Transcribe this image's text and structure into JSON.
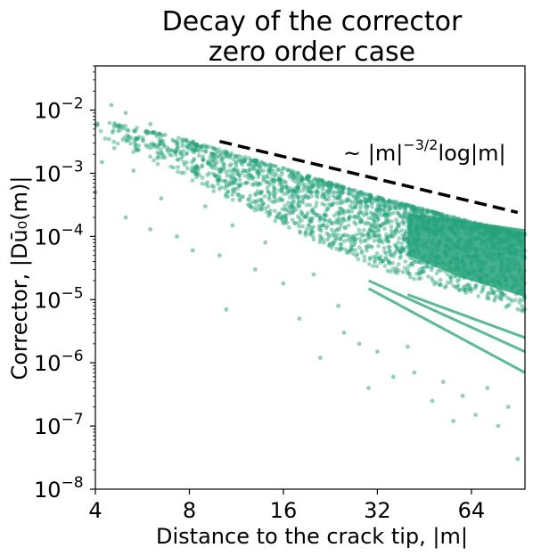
{
  "chart_data": {
    "type": "scatter",
    "title": [
      "Decay of the corrector",
      "zero order case"
    ],
    "xlabel": "Distance to the crack tip, |m|",
    "ylabel": "Corrector, |Dū₀(m)|",
    "x_scale": "log2",
    "y_scale": "log10",
    "xlim": [
      4,
      95
    ],
    "ylim": [
      1e-08,
      0.05
    ],
    "x_ticks": [
      4,
      8,
      16,
      32,
      64
    ],
    "x_tick_labels": [
      "4",
      "8",
      "16",
      "32",
      "64"
    ],
    "y_ticks": [
      1e-08,
      1e-07,
      1e-06,
      1e-05,
      0.0001,
      0.001,
      0.01
    ],
    "y_tick_labels": [
      {
        "base": "10",
        "exp": "−8"
      },
      {
        "base": "10",
        "exp": "−7"
      },
      {
        "base": "10",
        "exp": "−6"
      },
      {
        "base": "10",
        "exp": "−5"
      },
      {
        "base": "10",
        "exp": "−4"
      },
      {
        "base": "10",
        "exp": "−3"
      },
      {
        "base": "10",
        "exp": "−2"
      }
    ],
    "grid": false,
    "marker_color": "#25a27a",
    "reference_line": {
      "style": "dashed",
      "color": "#000000",
      "x": [
        10,
        90
      ],
      "y": [
        0.0032,
        0.00024
      ]
    },
    "annotation": {
      "prefix": "~ |m|",
      "exp": "−3/2",
      "suffix": "log|m|"
    },
    "series": [
      {
        "envelope_upper": [
          [
            4,
            0.0075
          ],
          [
            8,
            0.0033
          ],
          [
            16,
            0.0012
          ],
          [
            32,
            0.00042
          ],
          [
            64,
            0.00017
          ],
          [
            95,
            0.00011
          ]
        ],
        "dense_lower": [
          [
            4,
            0.004
          ],
          [
            8,
            0.0008
          ],
          [
            16,
            0.00015
          ],
          [
            32,
            3e-05
          ],
          [
            64,
            1.2e-05
          ],
          [
            95,
            6e-06
          ]
        ],
        "trend_lines": [
          {
            "x": [
              30,
              95
            ],
            "y": [
              1.5e-05,
              7e-07
            ]
          },
          {
            "x": [
              30,
              95
            ],
            "y": [
              2e-05,
              1.5e-06
            ]
          },
          {
            "x": [
              40,
              95
            ],
            "y": [
              1.2e-05,
              2.5e-06
            ]
          }
        ],
        "outliers": [
          [
            4,
            0.0005
          ],
          [
            4.2,
            0.0015
          ],
          [
            4.6,
            0.0025
          ],
          [
            5,
            0.0002
          ],
          [
            5.3,
            0.0011
          ],
          [
            6,
            0.00013
          ],
          [
            6.5,
            0.0004
          ],
          [
            7.3,
            0.0001
          ],
          [
            8.2,
            6e-05
          ],
          [
            9,
            0.0003
          ],
          [
            10,
            5e-05
          ],
          [
            10.5,
            7e-06
          ],
          [
            11,
            0.00015
          ],
          [
            13,
            3e-05
          ],
          [
            14,
            8e-05
          ],
          [
            16,
            1.8e-05
          ],
          [
            18,
            5e-06
          ],
          [
            20,
            2.5e-05
          ],
          [
            21,
            1.2e-06
          ],
          [
            24,
            8e-06
          ],
          [
            25,
            3e-06
          ],
          [
            28,
            2e-06
          ],
          [
            30,
            4e-07
          ],
          [
            32,
            1.5e-06
          ],
          [
            36,
            6e-07
          ],
          [
            40,
            1.8e-06
          ],
          [
            42,
            7e-07
          ],
          [
            48,
            2.5e-07
          ],
          [
            52,
            5e-07
          ],
          [
            56,
            1.2e-07
          ],
          [
            60,
            3e-07
          ],
          [
            66,
            1.5e-07
          ],
          [
            72,
            4e-07
          ],
          [
            78,
            1e-07
          ],
          [
            84,
            2e-07
          ],
          [
            90,
            3e-08
          ],
          [
            4.5,
            0.012
          ],
          [
            5,
            0.009
          ],
          [
            6,
            0.006
          ]
        ]
      }
    ]
  }
}
